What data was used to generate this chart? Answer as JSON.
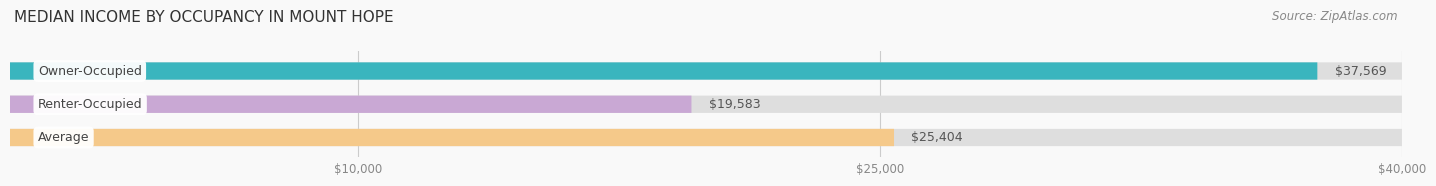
{
  "title": "MEDIAN INCOME BY OCCUPANCY IN MOUNT HOPE",
  "source": "Source: ZipAtlas.com",
  "categories": [
    "Owner-Occupied",
    "Renter-Occupied",
    "Average"
  ],
  "values": [
    37569,
    19583,
    25404
  ],
  "bar_colors": [
    "#3ab5be",
    "#c9a8d4",
    "#f5c98a"
  ],
  "bar_bg_color": "#dedede",
  "value_labels": [
    "$37,569",
    "$19,583",
    "$25,404"
  ],
  "x_ticks": [
    10000,
    25000,
    40000
  ],
  "x_tick_labels": [
    "$10,000",
    "$25,000",
    "$40,000"
  ],
  "xlim": [
    0,
    40000
  ],
  "title_fontsize": 11,
  "source_fontsize": 8.5,
  "label_fontsize": 9,
  "value_fontsize": 9,
  "background_color": "#f9f9f9"
}
